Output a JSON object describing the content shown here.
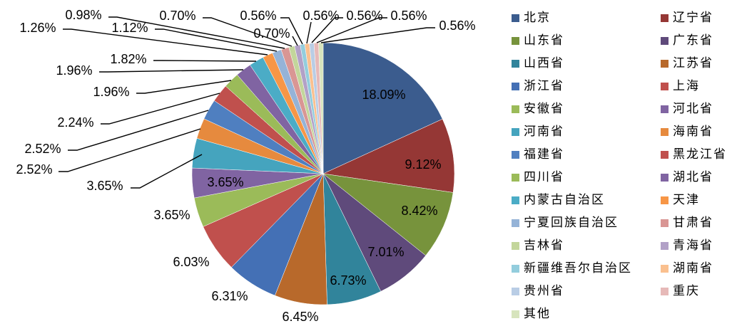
{
  "chart_data": {
    "type": "pie",
    "categories": [
      "北京",
      "辽宁省",
      "山东省",
      "广东省",
      "山西省",
      "江苏省",
      "浙江省",
      "上海",
      "安徽省",
      "河北省",
      "河南省",
      "海南省",
      "福建省",
      "黑龙江省",
      "四川省",
      "湖北省",
      "内蒙古自治区",
      "天津",
      "宁夏回族自治区",
      "甘肃省",
      "吉林省",
      "青海省",
      "新疆维吾尔自治区",
      "湖南省",
      "贵州省",
      "重庆",
      "其他"
    ],
    "values": [
      18.09,
      9.12,
      8.42,
      7.01,
      6.73,
      6.45,
      6.31,
      6.03,
      3.65,
      3.65,
      3.65,
      2.52,
      2.52,
      2.24,
      1.96,
      1.96,
      1.82,
      1.26,
      1.12,
      0.98,
      0.7,
      0.7,
      0.56,
      0.56,
      0.56,
      0.56,
      0.56
    ],
    "data_labels": [
      "18.09%",
      "9.12%",
      "8.42%",
      "7.01%",
      "6.73%",
      "6.45%",
      "6.31%",
      "6.03%",
      "3.65%",
      "3.65%",
      "3.65%",
      "2.52%",
      "2.52%",
      "2.24%",
      "1.96%",
      "1.96%",
      "1.82%",
      "1.26%",
      "1.12%",
      "0.98%",
      "0.70%",
      "0.70%",
      "0.56%",
      "0.56%",
      "0.56%",
      "0.56%",
      "0.56%"
    ],
    "colors": [
      "#3b5c8e",
      "#953735",
      "#77933c",
      "#5f4a7b",
      "#31849b",
      "#b8692b",
      "#4470b5",
      "#c0504d",
      "#9bbb59",
      "#8064a2",
      "#45a4be",
      "#e68a3e",
      "#4f7fc0",
      "#c0504d",
      "#9bbb59",
      "#8064a2",
      "#4bacc6",
      "#f79646",
      "#95b3d7",
      "#d99694",
      "#c3d69b",
      "#b2a1c7",
      "#93cddd",
      "#fac08f",
      "#b9cde5",
      "#e6b9b8",
      "#d7e4bd"
    ],
    "legend_position": "right",
    "direction": "clockwise from top"
  }
}
